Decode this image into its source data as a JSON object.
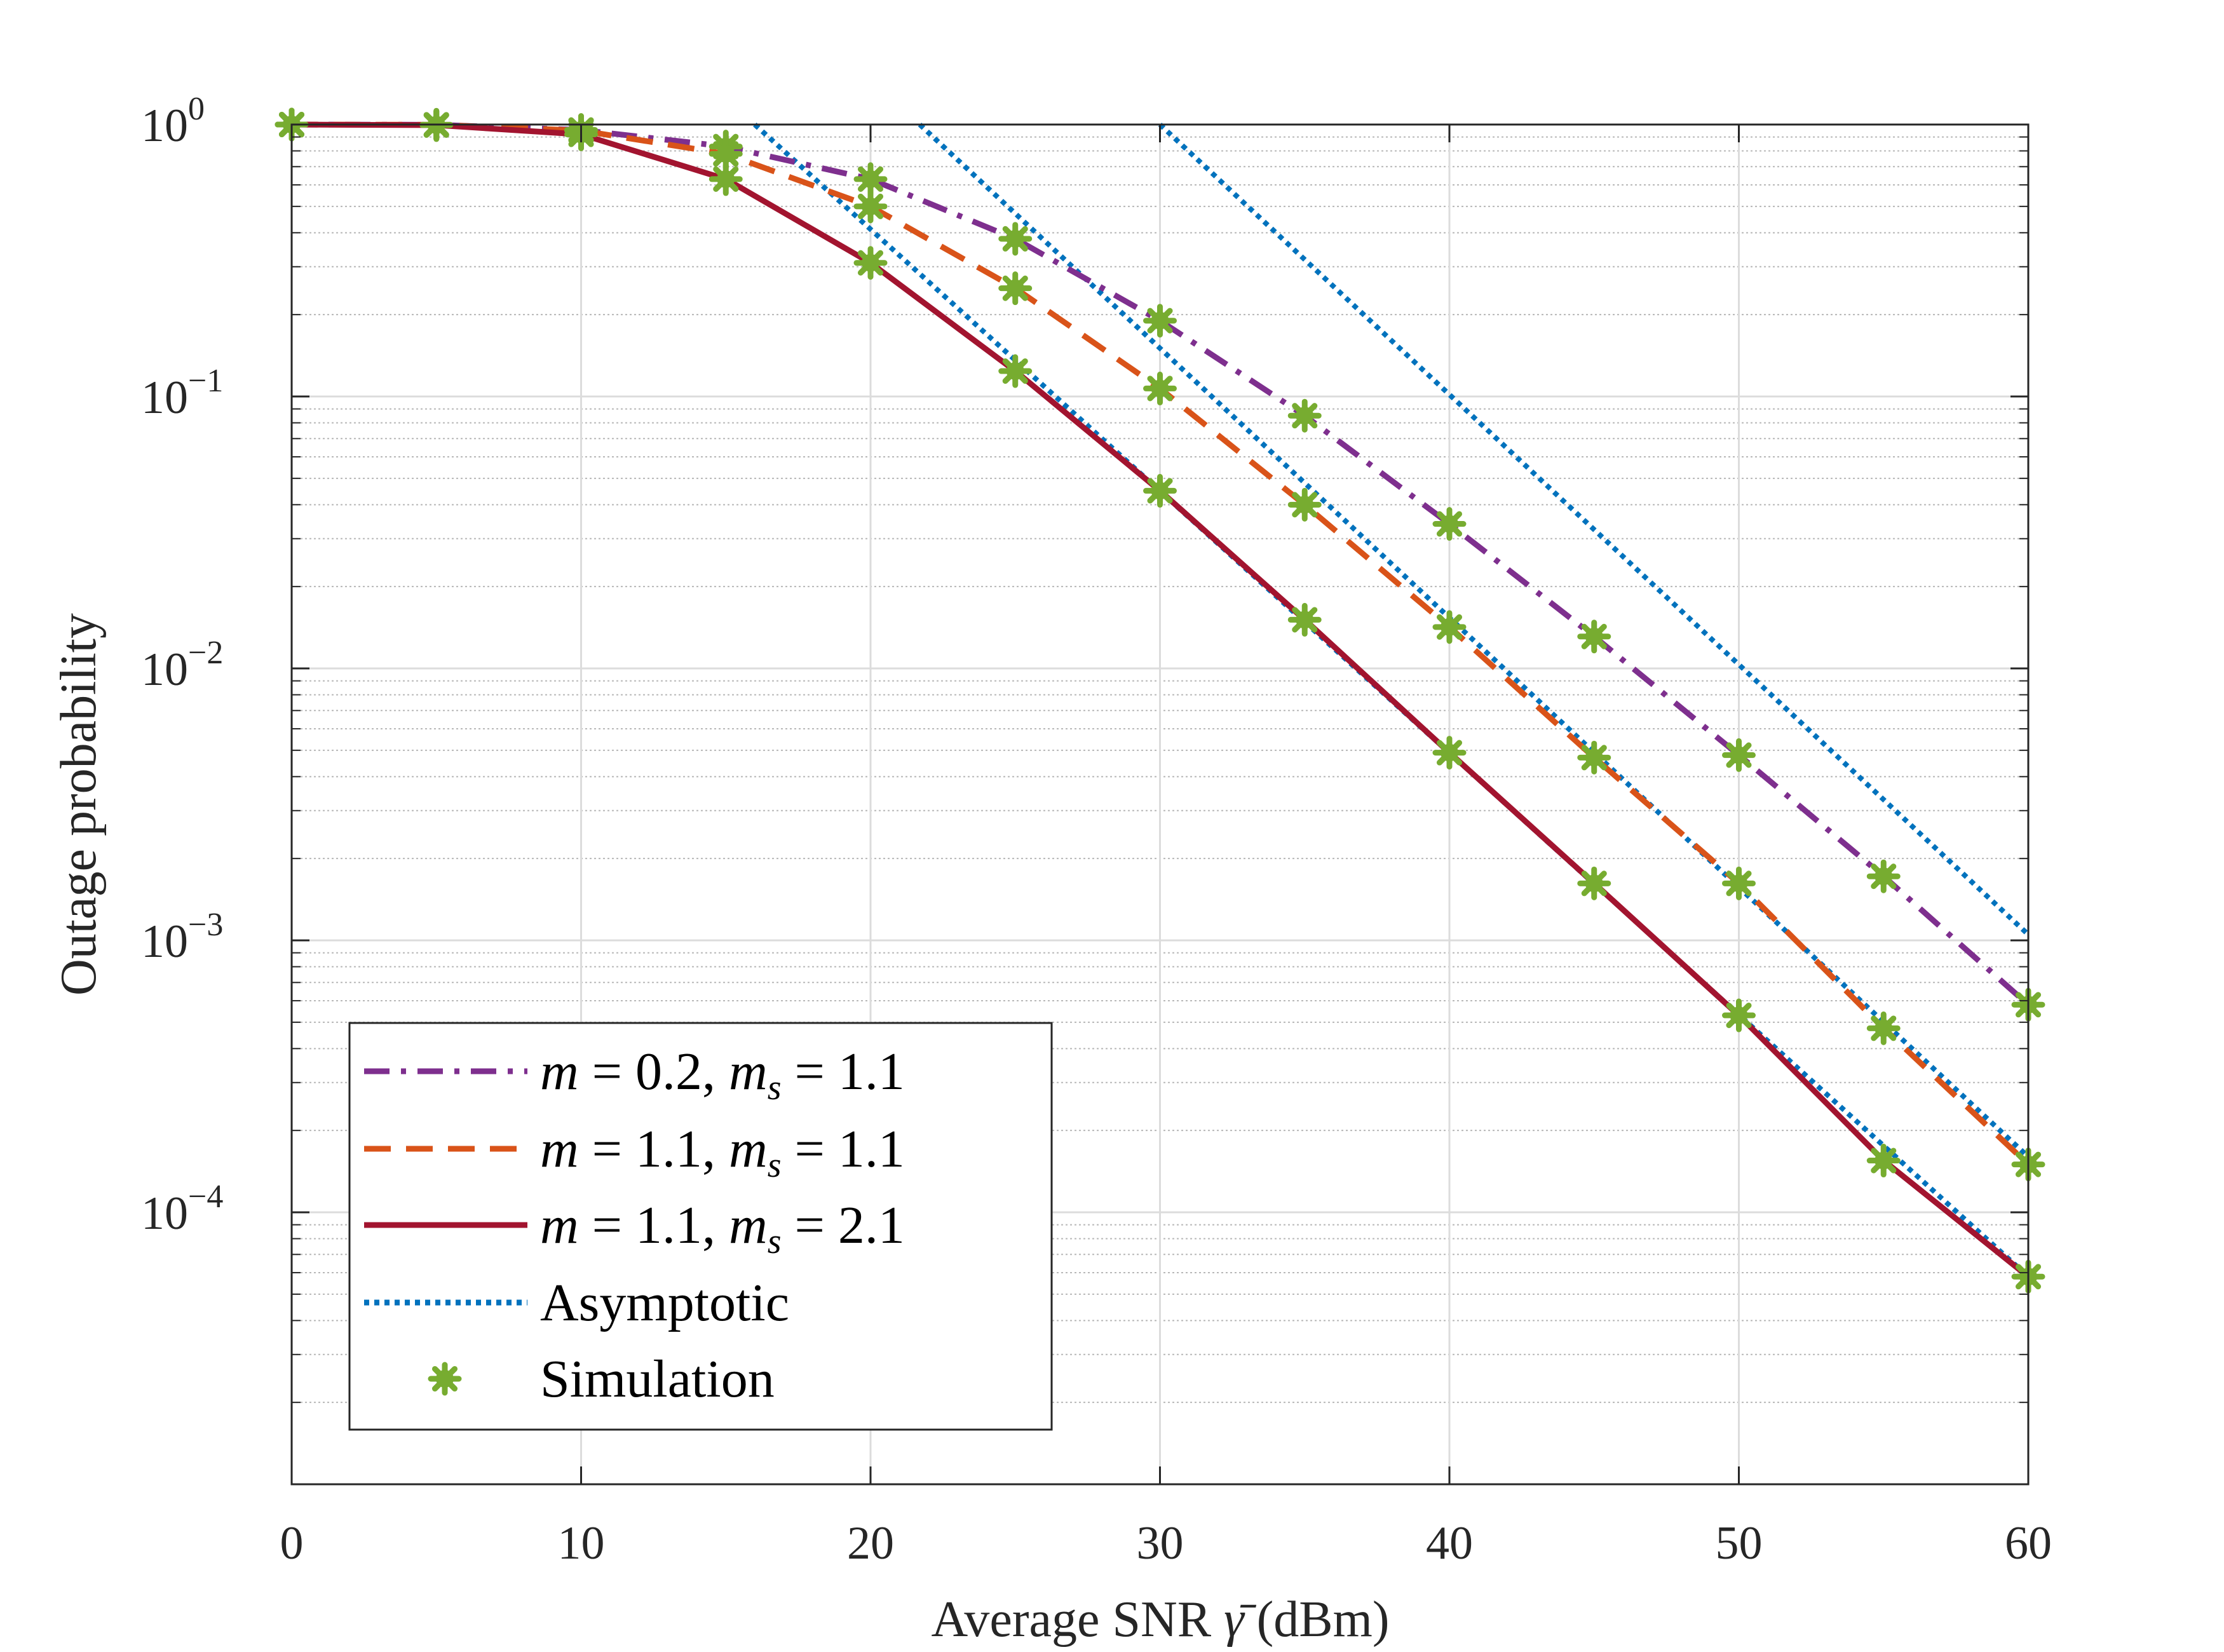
{
  "chart_data": {
    "type": "line",
    "xlabel": "Average SNR γ̄ (dBm)",
    "ylabel": "Outage probability",
    "xlim": [
      0,
      60
    ],
    "ylim_log10": [
      -5,
      0
    ],
    "yscale": "log",
    "grid": true,
    "legend_position": "bottom-left",
    "x_ticks": [
      "0",
      "10",
      "20",
      "30",
      "40",
      "50",
      "60"
    ],
    "y_ticks": [
      {
        "base": "10",
        "exp": "0"
      },
      {
        "base": "10",
        "exp": "−1"
      },
      {
        "base": "10",
        "exp": "−2"
      },
      {
        "base": "10",
        "exp": "−3"
      },
      {
        "base": "10",
        "exp": "−4"
      }
    ],
    "series": [
      {
        "name": "m = 0.2, m_s = 1.1",
        "legend": {
          "m_val": "0.2",
          "ms_val": "1.1"
        },
        "style": "dashdot",
        "color": "#7E2F8E",
        "x": [
          0,
          5,
          10,
          15,
          20,
          25,
          30,
          35,
          40,
          45,
          50,
          55,
          60
        ],
        "y": [
          1.0,
          0.998,
          0.955,
          0.83,
          0.63,
          0.38,
          0.19,
          0.085,
          0.034,
          0.0131,
          0.0048,
          0.00172,
          0.00058
        ]
      },
      {
        "name": "m = 1.1, m_s = 1.1",
        "legend": {
          "m_val": "1.1",
          "ms_val": "1.1"
        },
        "style": "dashed",
        "color": "#D95319",
        "x": [
          0,
          5,
          10,
          15,
          20,
          25,
          30,
          35,
          40,
          45,
          50,
          55,
          60
        ],
        "y": [
          1.0,
          0.998,
          0.95,
          0.78,
          0.5,
          0.25,
          0.107,
          0.04,
          0.0142,
          0.0047,
          0.00162,
          0.000475,
          0.00015
        ]
      },
      {
        "name": "m = 1.1, m_s = 2.1",
        "legend": {
          "m_val": "1.1",
          "ms_val": "2.1"
        },
        "style": "solid",
        "color": "#A2142F",
        "x": [
          0,
          5,
          10,
          15,
          20,
          25,
          30,
          35,
          40,
          45,
          50,
          55,
          60
        ],
        "y": [
          1.0,
          0.995,
          0.92,
          0.63,
          0.31,
          0.124,
          0.045,
          0.0151,
          0.0049,
          0.00162,
          0.00053,
          0.000155,
          5.8e-05
        ]
      }
    ],
    "asymptotic": {
      "name": "Asymptotic",
      "style": "dotted",
      "color": "#0072BD",
      "lines": [
        {
          "x": [
            30,
            60
          ],
          "y": [
            1.0,
            0.00105
          ]
        },
        {
          "x": [
            21.7,
            60
          ],
          "y": [
            1.0,
            0.00016
          ]
        },
        {
          "x": [
            16,
            60
          ],
          "y": [
            1.0,
            5.8e-05
          ]
        }
      ]
    },
    "simulation": {
      "name": "Simulation",
      "marker": "asterisk",
      "color": "#77AC30"
    },
    "legend_labels": {
      "asymptotic": "Asymptotic",
      "simulation": "Simulation"
    }
  }
}
